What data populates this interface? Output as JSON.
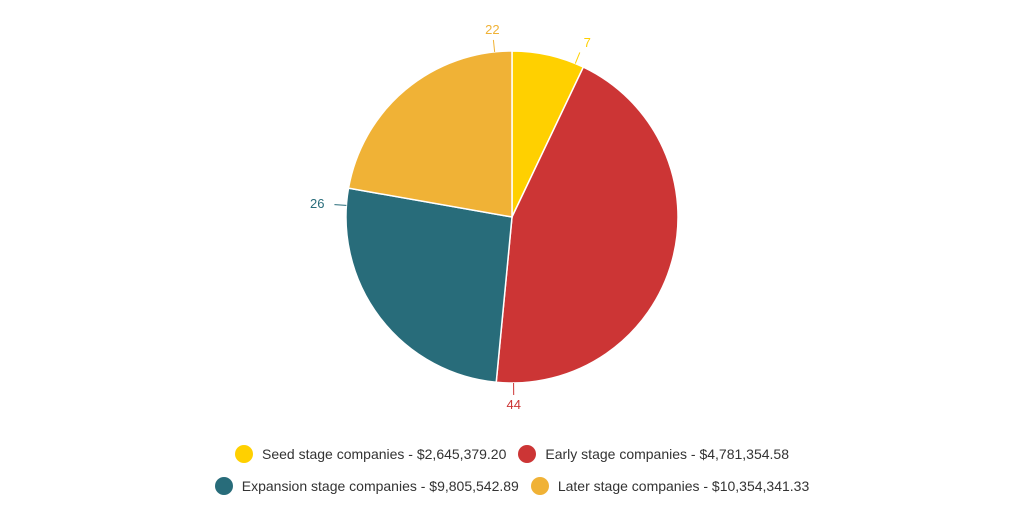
{
  "chart_data": {
    "type": "pie",
    "title": "",
    "start_angle_deg": 0,
    "direction": "clockwise",
    "slices": [
      {
        "label": "Seed stage companies - $2,645,379.20",
        "value": 7,
        "value_label": "7",
        "color": "#FFD000"
      },
      {
        "label": "Early stage companies - $4,781,354.58",
        "value": 44,
        "value_label": "44",
        "color": "#CC3535"
      },
      {
        "label": "Expansion stage companies - $9,805,542.89",
        "value": 26,
        "value_label": "26",
        "color": "#286C7A"
      },
      {
        "label": "Later stage companies - $10,354,341.33",
        "value": 22,
        "value_label": "22",
        "color": "#F0B236"
      }
    ],
    "legend": {
      "placement": "bottom",
      "rows": [
        [
          0,
          1
        ],
        [
          2,
          3
        ]
      ]
    }
  }
}
